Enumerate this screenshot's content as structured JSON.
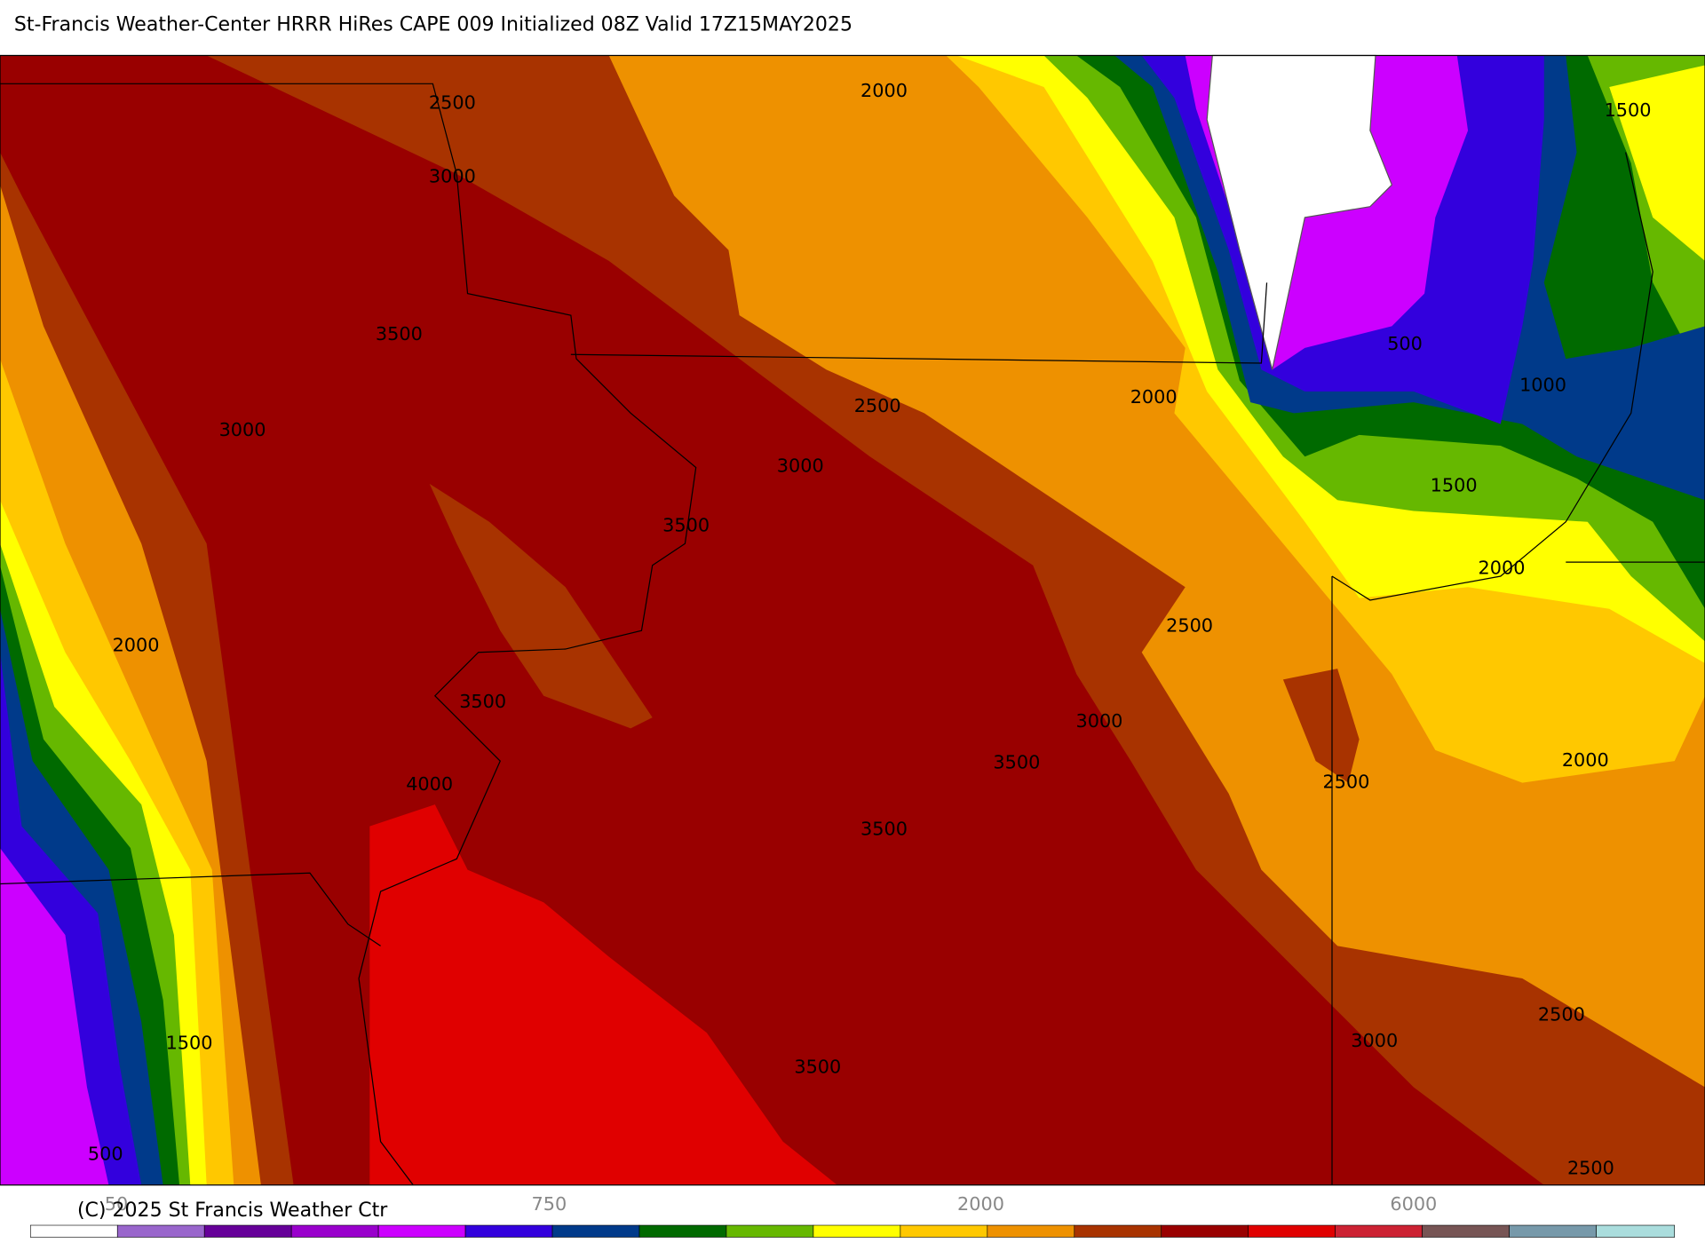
{
  "header": {
    "title": "St-Francis Weather-Center HRRR HiRes CAPE  009 Initialized  08Z Valid 17Z15MAY2025"
  },
  "map": {
    "contour_labels": [
      "2500",
      "3000",
      "2000",
      "1500",
      "3500",
      "500",
      "1000",
      "3000",
      "2500",
      "2000",
      "3000",
      "1500",
      "3500",
      "2000",
      "2000",
      "2500",
      "3500",
      "3000",
      "4000",
      "3500",
      "2500",
      "2000",
      "3500",
      "1500",
      "3000",
      "2500",
      "3500",
      "500",
      "2500"
    ]
  },
  "footer": {
    "copyright": "(C) 2025 St Francis Weather Ctr",
    "colorbar_labels": [
      "50",
      "750",
      "2000",
      "6000"
    ]
  }
}
